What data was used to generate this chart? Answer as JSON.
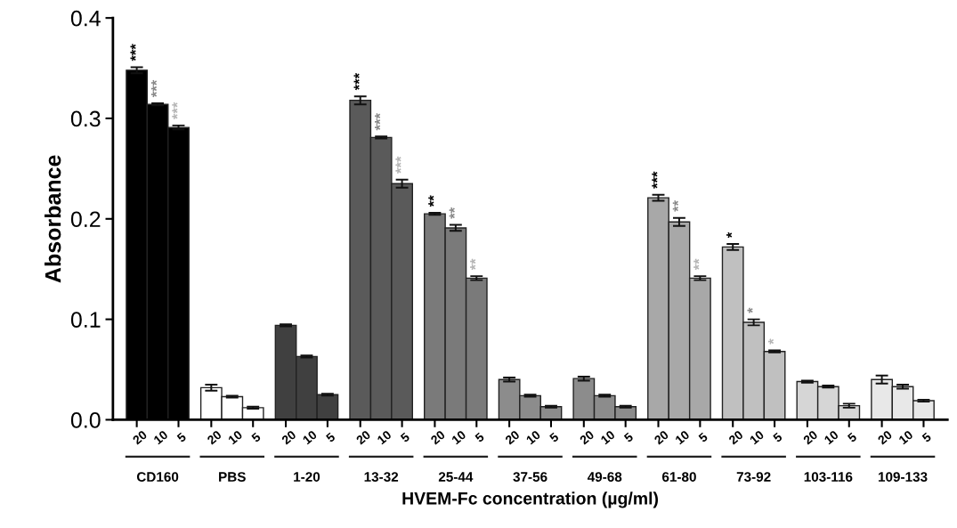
{
  "chart_data": {
    "type": "bar",
    "xlabel": "HVEM-Fc concentration (µg/ml)",
    "ylabel": "Absorbance",
    "categories": [
      "CD160",
      "PBS",
      "1-20",
      "13-32",
      "25-44",
      "37-56",
      "49-68",
      "61-80",
      "73-92",
      "103-116",
      "109-133"
    ],
    "ylim": [
      0.0,
      0.4
    ],
    "yticks": [
      {
        "value": 0.0,
        "label": "0.0"
      },
      {
        "value": 0.1,
        "label": "0.1"
      },
      {
        "value": 0.2,
        "label": "0.2"
      },
      {
        "value": 0.3,
        "label": "0.3"
      },
      {
        "value": 0.4,
        "label": "0.4"
      }
    ],
    "grid": false,
    "legend": "bottom",
    "series": [
      {
        "name": "20",
        "colors": [
          "#000000",
          "#ffffff",
          "#404040",
          "#5a5a5a",
          "#7a7a7a",
          "#8c8c8c",
          "#8c8c8c",
          "#a8a8a8",
          "#c0c0c0",
          "#d6d6d6",
          "#e8e8e8"
        ],
        "values": [
          0.348,
          0.032,
          0.094,
          0.318,
          0.205,
          0.04,
          0.041,
          0.221,
          0.172,
          0.038,
          0.04
        ],
        "errors": [
          0.003,
          0.003,
          0.001,
          0.004,
          0.001,
          0.002,
          0.002,
          0.003,
          0.003,
          0.001,
          0.004
        ],
        "value_labels": [
          "***",
          null,
          null,
          "***",
          "**",
          null,
          null,
          "***",
          "*",
          null,
          null
        ]
      },
      {
        "name": "10",
        "colors": [
          "#000000",
          "#ffffff",
          "#404040",
          "#5a5a5a",
          "#7a7a7a",
          "#8c8c8c",
          "#8c8c8c",
          "#a8a8a8",
          "#c0c0c0",
          "#d6d6d6",
          "#e8e8e8"
        ],
        "values": [
          0.314,
          0.023,
          0.063,
          0.281,
          0.191,
          0.024,
          0.024,
          0.197,
          0.097,
          0.033,
          0.033
        ],
        "errors": [
          0.001,
          0.001,
          0.001,
          0.001,
          0.003,
          0.001,
          0.001,
          0.004,
          0.003,
          0.001,
          0.002
        ],
        "value_labels": [
          "***",
          null,
          null,
          "***",
          "**",
          null,
          null,
          "**",
          "*",
          null,
          null
        ]
      },
      {
        "name": "5",
        "colors": [
          "#000000",
          "#ffffff",
          "#404040",
          "#5a5a5a",
          "#7a7a7a",
          "#8c8c8c",
          "#8c8c8c",
          "#a8a8a8",
          "#c0c0c0",
          "#d6d6d6",
          "#e8e8e8"
        ],
        "values": [
          0.291,
          0.012,
          0.025,
          0.235,
          0.141,
          0.013,
          0.013,
          0.141,
          0.068,
          0.014,
          0.019
        ],
        "errors": [
          0.002,
          0.001,
          0.001,
          0.004,
          0.002,
          0.001,
          0.001,
          0.002,
          0.001,
          0.002,
          0.001
        ],
        "value_labels": [
          "***",
          null,
          null,
          "***",
          "**",
          null,
          null,
          "**",
          "*",
          null,
          null
        ]
      }
    ]
  }
}
